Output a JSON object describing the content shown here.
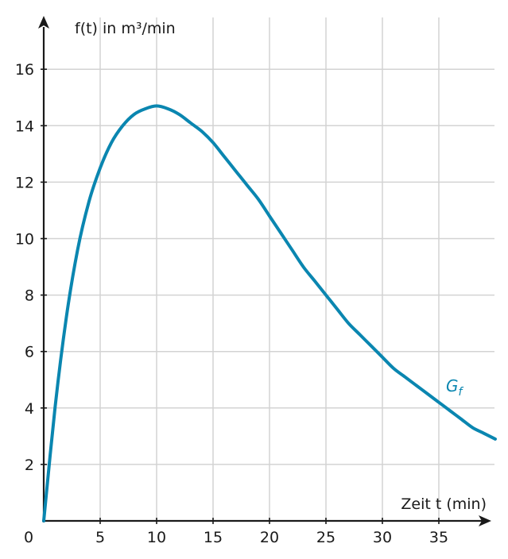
{
  "chart_data": {
    "type": "line",
    "title": "",
    "xlabel": "Zeit t (min)",
    "ylabel": "f(t) in m³/min",
    "origin_label": "0",
    "xlim": [
      0,
      40
    ],
    "ylim": [
      0,
      17.5
    ],
    "x_ticks": [
      5,
      10,
      15,
      20,
      25,
      30,
      35
    ],
    "y_ticks": [
      2,
      4,
      6,
      8,
      10,
      12,
      14,
      16
    ],
    "grid": true,
    "colors": {
      "curve": "#0a86b0",
      "axis": "#1a1a1a",
      "grid": "#d3d3d3"
    },
    "series": [
      {
        "name": "G",
        "name_subscript": "f",
        "x": [
          0,
          1,
          2,
          3,
          4,
          5,
          6,
          7,
          8,
          9,
          10,
          11,
          12,
          13,
          14,
          15,
          16,
          17,
          18,
          19,
          20,
          21,
          22,
          23,
          24,
          25,
          26,
          27,
          28,
          29,
          30,
          31,
          32,
          33,
          34,
          35,
          36,
          37,
          38,
          39,
          40
        ],
        "y": [
          0,
          4.0,
          7.2,
          9.6,
          11.3,
          12.5,
          13.4,
          14.0,
          14.4,
          14.6,
          14.7,
          14.6,
          14.4,
          14.1,
          13.8,
          13.4,
          12.9,
          12.4,
          11.9,
          11.4,
          10.8,
          10.2,
          9.6,
          9.0,
          8.5,
          8.0,
          7.5,
          7.0,
          6.6,
          6.2,
          5.8,
          5.4,
          5.1,
          4.8,
          4.5,
          4.2,
          3.9,
          3.6,
          3.3,
          3.1,
          2.9
        ]
      }
    ]
  }
}
